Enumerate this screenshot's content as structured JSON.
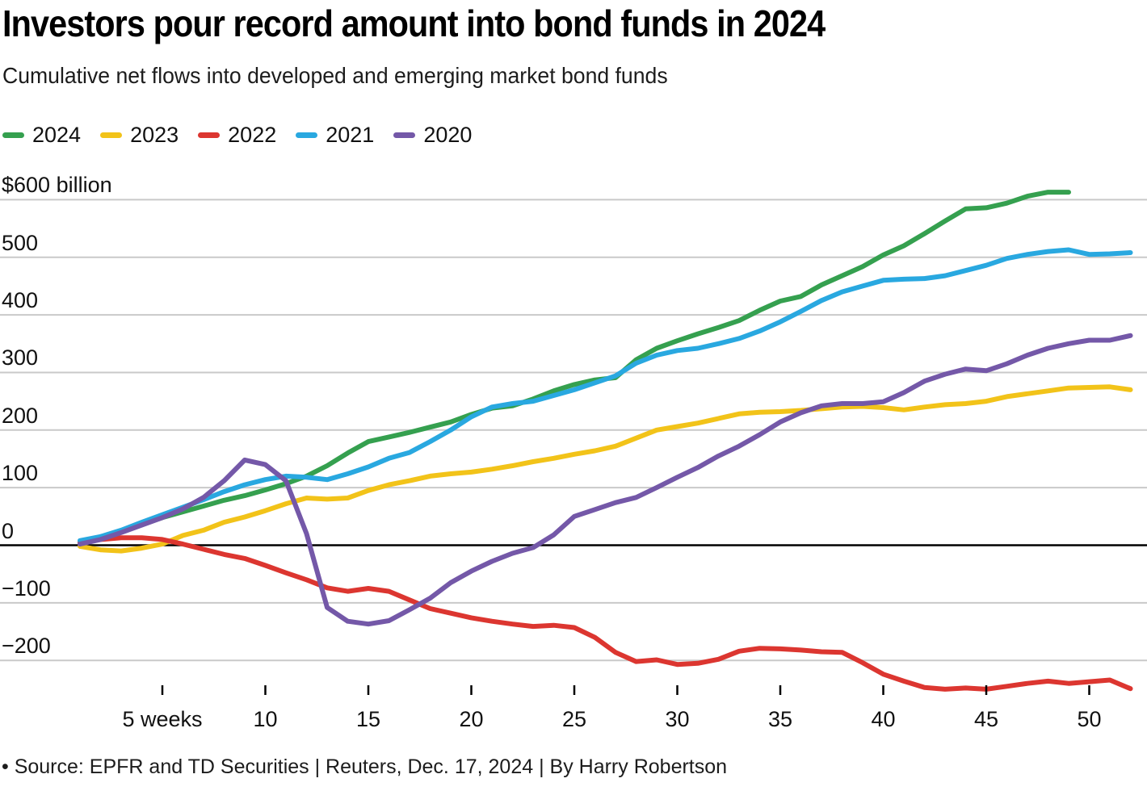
{
  "footer": {
    "source": "• Source: EPFR and TD Securities | Reuters, Dec. 17, 2024 | By Harry Robertson"
  },
  "chart_data": {
    "type": "line",
    "title": "Investors pour record amount into bond funds in 2024",
    "subtitle": "Cumulative net flows into developed and emerging market bond funds",
    "unit": "$ billion",
    "xlabel": "weeks",
    "ylabel": "$ billion cumulative net flows",
    "xlim": [
      1,
      52
    ],
    "ylim": [
      -290,
      640
    ],
    "grid": true,
    "legend_position": "top-left",
    "zero_line_color": "#000000",
    "gridline_color": "#c9c9c9",
    "yticks": [
      {
        "value": 600,
        "label": "$600 billion"
      },
      {
        "value": 500,
        "label": "500"
      },
      {
        "value": 400,
        "label": "400"
      },
      {
        "value": 300,
        "label": "300"
      },
      {
        "value": 200,
        "label": "200"
      },
      {
        "value": 100,
        "label": "100"
      },
      {
        "value": 0,
        "label": "0"
      },
      {
        "value": -100,
        "label": "−100"
      },
      {
        "value": -200,
        "label": "−200"
      }
    ],
    "xticks": [
      {
        "week": 5,
        "label": "5 weeks"
      },
      {
        "week": 10,
        "label": "10"
      },
      {
        "week": 15,
        "label": "15"
      },
      {
        "week": 20,
        "label": "20"
      },
      {
        "week": 25,
        "label": "25"
      },
      {
        "week": 30,
        "label": "30"
      },
      {
        "week": 35,
        "label": "35"
      },
      {
        "week": 40,
        "label": "40"
      },
      {
        "week": 45,
        "label": "45"
      },
      {
        "week": 50,
        "label": "50"
      }
    ],
    "series": [
      {
        "name": "2024",
        "color": "#35a04f",
        "start_week": 1,
        "values": [
          5,
          12,
          23,
          36,
          48,
          58,
          68,
          78,
          86,
          96,
          107,
          120,
          138,
          160,
          180,
          188,
          196,
          205,
          214,
          227,
          238,
          242,
          254,
          268,
          279,
          287,
          291,
          322,
          342,
          355,
          367,
          378,
          390,
          408,
          424,
          432,
          452,
          468,
          484,
          504,
          520,
          541,
          563,
          584,
          586,
          594,
          606,
          613,
          613
        ]
      },
      {
        "name": "2023",
        "color": "#f2c319",
        "start_week": 1,
        "values": [
          -2,
          -8,
          -10,
          -5,
          2,
          17,
          26,
          40,
          49,
          60,
          72,
          82,
          80,
          82,
          95,
          105,
          112,
          120,
          124,
          127,
          132,
          138,
          145,
          151,
          158,
          164,
          172,
          186,
          200,
          206,
          212,
          220,
          228,
          231,
          232,
          234,
          237,
          240,
          241,
          239,
          235,
          240,
          244,
          246,
          250,
          258,
          263,
          268,
          273,
          274,
          275,
          270
        ]
      },
      {
        "name": "2022",
        "color": "#dc3630",
        "start_week": 1,
        "values": [
          5,
          10,
          13,
          13,
          10,
          2,
          -7,
          -16,
          -23,
          -35,
          -48,
          -60,
          -74,
          -80,
          -75,
          -80,
          -95,
          -110,
          -118,
          -126,
          -132,
          -137,
          -141,
          -139,
          -143,
          -160,
          -186,
          -202,
          -199,
          -207,
          -205,
          -198,
          -184,
          -179,
          -180,
          -182,
          -185,
          -186,
          -204,
          -224,
          -236,
          -247,
          -250,
          -248,
          -250,
          -245,
          -240,
          -236,
          -240,
          -237,
          -234,
          -249
        ]
      },
      {
        "name": "2021",
        "color": "#29a8e0",
        "start_week": 1,
        "values": [
          8,
          15,
          26,
          40,
          53,
          66,
          79,
          93,
          105,
          114,
          120,
          118,
          114,
          124,
          136,
          151,
          161,
          180,
          200,
          223,
          240,
          246,
          250,
          260,
          270,
          282,
          294,
          316,
          330,
          338,
          342,
          350,
          359,
          372,
          388,
          406,
          425,
          440,
          450,
          460,
          462,
          463,
          468,
          477,
          486,
          498,
          505,
          510,
          513,
          505,
          506,
          508
        ]
      },
      {
        "name": "2020",
        "color": "#7458a8",
        "start_week": 1,
        "values": [
          2,
          10,
          22,
          35,
          48,
          63,
          83,
          112,
          148,
          140,
          112,
          20,
          -108,
          -132,
          -137,
          -131,
          -112,
          -92,
          -65,
          -45,
          -28,
          -14,
          -4,
          18,
          50,
          62,
          74,
          83,
          100,
          118,
          135,
          155,
          172,
          192,
          214,
          230,
          242,
          246,
          246,
          249,
          265,
          285,
          297,
          306,
          303,
          315,
          330,
          342,
          350,
          356,
          356,
          364
        ]
      }
    ]
  }
}
